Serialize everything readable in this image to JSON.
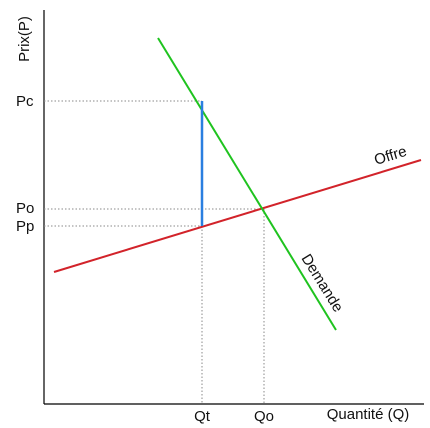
{
  "axes": {
    "y_label": "Prix(P)",
    "x_label": "Quantité (Q)"
  },
  "price_ticks": {
    "pc": "Pc",
    "po": "Po",
    "pp": "Pp"
  },
  "quantity_ticks": {
    "qt": "Qt",
    "qo": "Qo"
  },
  "curves": {
    "supply": {
      "label": "Offre",
      "color": "#d2232a"
    },
    "demand": {
      "label": "Demande",
      "color": "#1fc31f"
    },
    "wedge": {
      "color": "#2a7fe0"
    }
  }
}
